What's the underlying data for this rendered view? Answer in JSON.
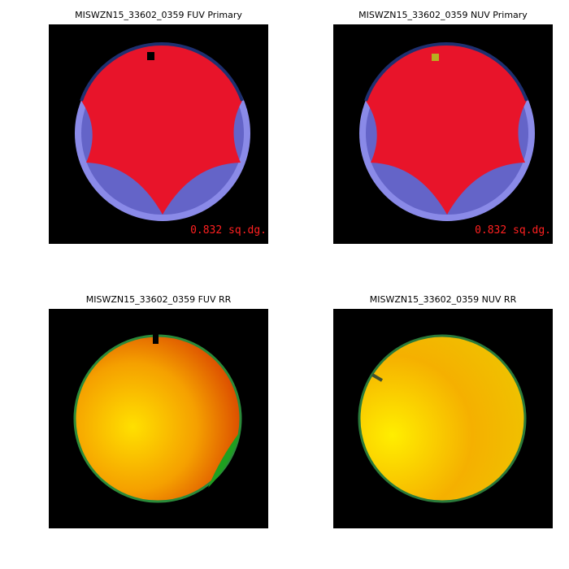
{
  "panels": [
    {
      "title": "MISWZN15_33602_0359 FUV Primary",
      "area_label": "0.832 sq.dg."
    },
    {
      "title": "MISWZN15_33602_0359 NUV Primary",
      "area_label": "0.832 sq.dg."
    },
    {
      "title": "MISWZN15_33602_0359 FUV RR"
    },
    {
      "title": "MISWZN15_33602_0359 NUV RR"
    }
  ]
}
